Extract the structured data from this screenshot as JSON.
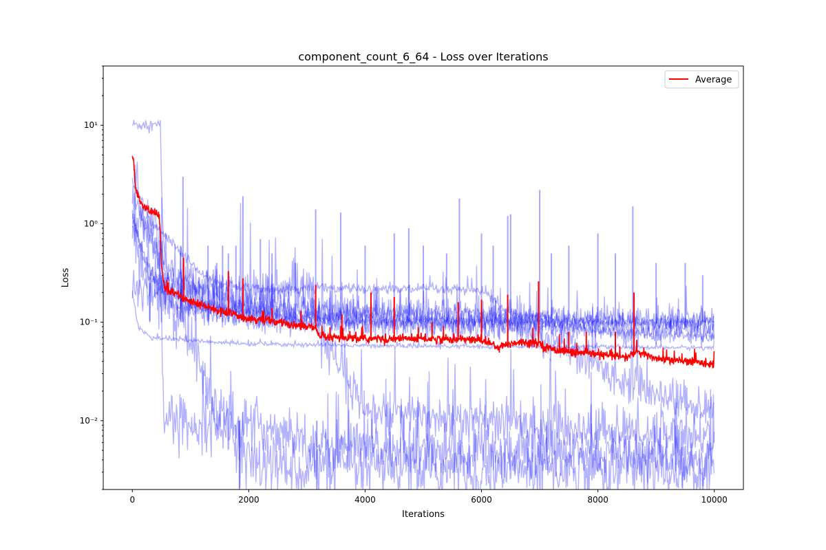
{
  "chart_data": {
    "type": "line",
    "title": "component_count_6_64 - Loss over Iterations",
    "xlabel": "Iterations",
    "ylabel": "Loss",
    "yscale": "log",
    "xlim": [
      -500,
      10500
    ],
    "ylim": [
      0.002,
      40
    ],
    "x_ticks": [
      0,
      2000,
      4000,
      6000,
      8000,
      10000
    ],
    "x_tick_labels": [
      "0",
      "2000",
      "4000",
      "6000",
      "8000",
      "10000"
    ],
    "y_ticks": [
      0.01,
      0.1,
      1,
      10
    ],
    "y_tick_labels": [
      "10⁻²",
      "10⁻¹",
      "10⁰",
      "10¹"
    ],
    "grid": false,
    "legend": {
      "position": "top-right",
      "entries": [
        "Average"
      ]
    },
    "colors": {
      "runs": "#0000ff",
      "average": "#ff0000"
    },
    "runs": [
      {
        "points": [
          [
            0,
            10.2
          ],
          [
            480,
            10
          ],
          [
            520,
            1.0
          ],
          [
            600,
            0.25
          ],
          [
            1000,
            0.14
          ],
          [
            3000,
            0.11
          ],
          [
            5000,
            0.1
          ],
          [
            7000,
            0.1
          ],
          [
            8000,
            0.08
          ],
          [
            9000,
            0.075
          ],
          [
            10000,
            0.07
          ]
        ],
        "noise": 0.15
      },
      {
        "points": [
          [
            0,
            1.1
          ],
          [
            400,
            1.1
          ],
          [
            450,
            0.7
          ],
          [
            550,
            0.0105
          ],
          [
            1000,
            0.0095
          ],
          [
            2000,
            0.009
          ],
          [
            2700,
            0.008
          ],
          [
            3200,
            0.0055
          ],
          [
            5000,
            0.005
          ],
          [
            8000,
            0.0045
          ],
          [
            10000,
            0.004
          ]
        ],
        "noise": 0.6
      },
      {
        "points": [
          [
            0,
            0.9
          ],
          [
            200,
            0.3
          ],
          [
            600,
            0.2
          ],
          [
            1800,
            0.005
          ],
          [
            2200,
            0.0035
          ],
          [
            4000,
            0.0032
          ],
          [
            7000,
            0.0032
          ],
          [
            10000,
            0.0032
          ]
        ],
        "noise": 0.75
      },
      {
        "points": [
          [
            0,
            0.22
          ],
          [
            3100,
            0.2
          ],
          [
            3200,
            0.08
          ],
          [
            4000,
            0.012
          ],
          [
            6000,
            0.01
          ],
          [
            8000,
            0.008
          ],
          [
            10000,
            0.007
          ]
        ],
        "noise": 0.55
      },
      {
        "points": [
          [
            0,
            0.2
          ],
          [
            100,
            0.09
          ],
          [
            300,
            0.07
          ],
          [
            1000,
            0.065
          ],
          [
            2000,
            0.06
          ],
          [
            5000,
            0.057
          ],
          [
            8000,
            0.056
          ],
          [
            10000,
            0.055
          ]
        ],
        "noise": 0.05
      },
      {
        "points": [
          [
            0,
            1.2
          ],
          [
            200,
            0.5
          ],
          [
            600,
            0.15
          ],
          [
            2000,
            0.1
          ],
          [
            4000,
            0.095
          ],
          [
            6000,
            0.1
          ],
          [
            8000,
            0.1
          ],
          [
            10000,
            0.09
          ]
        ],
        "noise": 0.2
      },
      {
        "points": [
          [
            0,
            2.8
          ],
          [
            300,
            1.1
          ],
          [
            1000,
            0.4
          ],
          [
            1200,
            0.3
          ],
          [
            1500,
            0.25
          ],
          [
            2000,
            0.22
          ],
          [
            4000,
            0.22
          ],
          [
            6000,
            0.21
          ],
          [
            6500,
            0.12
          ],
          [
            8000,
            0.1
          ],
          [
            10000,
            0.1
          ]
        ],
        "noise": 0.12
      },
      {
        "points": [
          [
            0,
            2.0
          ],
          [
            300,
            0.7
          ],
          [
            800,
            0.3
          ],
          [
            2000,
            0.15
          ],
          [
            4000,
            0.12
          ],
          [
            6500,
            0.1
          ],
          [
            7500,
            0.05
          ],
          [
            8500,
            0.025
          ],
          [
            9500,
            0.015
          ],
          [
            10000,
            0.012
          ]
        ],
        "noise": 0.45
      },
      {
        "points": [
          [
            0,
            5.0
          ],
          [
            200,
            1.0
          ],
          [
            600,
            0.3
          ],
          [
            2000,
            0.12
          ],
          [
            4000,
            0.1
          ],
          [
            6000,
            0.09
          ],
          [
            8000,
            0.085
          ],
          [
            10000,
            0.08
          ]
        ],
        "noise": 0.35
      },
      {
        "points": [
          [
            0,
            1.0
          ],
          [
            300,
            0.3
          ],
          [
            1000,
            0.15
          ],
          [
            3000,
            0.13
          ],
          [
            6000,
            0.12
          ],
          [
            8000,
            0.11
          ],
          [
            10000,
            0.11
          ]
        ],
        "noise": 0.25
      }
    ],
    "run_spikes": [
      [
        300,
        0.25
      ],
      [
        500,
        0.3
      ],
      [
        830,
        0.6
      ],
      [
        870,
        3.0
      ],
      [
        1300,
        0.6
      ],
      [
        1450,
        0.4
      ],
      [
        1550,
        0.6
      ],
      [
        1650,
        0.5
      ],
      [
        1780,
        0.6
      ],
      [
        1900,
        1.9
      ],
      [
        2200,
        0.7
      ],
      [
        2400,
        0.5
      ],
      [
        2800,
        0.4
      ],
      [
        3150,
        1.4
      ],
      [
        3580,
        1.3
      ],
      [
        4000,
        0.6
      ],
      [
        4500,
        0.8
      ],
      [
        4750,
        0.9
      ],
      [
        5000,
        0.6
      ],
      [
        5400,
        0.5
      ],
      [
        5620,
        1.8
      ],
      [
        6000,
        0.8
      ],
      [
        6200,
        0.6
      ],
      [
        6450,
        1.2
      ],
      [
        6500,
        1.25
      ],
      [
        7000,
        2.2
      ],
      [
        7200,
        0.5
      ],
      [
        7500,
        0.6
      ],
      [
        8000,
        0.8
      ],
      [
        8300,
        0.5
      ],
      [
        8600,
        1.5
      ],
      [
        9000,
        0.4
      ],
      [
        9500,
        0.4
      ],
      [
        9800,
        0.3
      ]
    ],
    "run_drops": [
      [
        1840,
        0.0005
      ],
      [
        3170,
        0.0005
      ]
    ],
    "average": {
      "name": "Average",
      "points": [
        [
          0,
          4.6
        ],
        [
          25,
          4.2
        ],
        [
          50,
          2.3
        ],
        [
          100,
          1.9
        ],
        [
          200,
          1.45
        ],
        [
          300,
          1.35
        ],
        [
          400,
          1.3
        ],
        [
          460,
          1.2
        ],
        [
          480,
          0.8
        ],
        [
          500,
          0.35
        ],
        [
          560,
          0.22
        ],
        [
          800,
          0.19
        ],
        [
          1000,
          0.16
        ],
        [
          1500,
          0.13
        ],
        [
          2000,
          0.11
        ],
        [
          2500,
          0.1
        ],
        [
          3000,
          0.09
        ],
        [
          3150,
          0.088
        ],
        [
          3200,
          0.07
        ],
        [
          4000,
          0.068
        ],
        [
          5000,
          0.068
        ],
        [
          6000,
          0.066
        ],
        [
          6300,
          0.056
        ],
        [
          6600,
          0.063
        ],
        [
          7000,
          0.062
        ],
        [
          7100,
          0.055
        ],
        [
          7500,
          0.05
        ],
        [
          8000,
          0.047
        ],
        [
          8500,
          0.044
        ],
        [
          8650,
          0.05
        ],
        [
          9000,
          0.043
        ],
        [
          9500,
          0.04
        ],
        [
          10000,
          0.038
        ]
      ],
      "spikes": [
        [
          700,
          0.22
        ],
        [
          880,
          0.45
        ],
        [
          1100,
          0.16
        ],
        [
          1400,
          0.14
        ],
        [
          1650,
          0.33
        ],
        [
          1900,
          0.28
        ],
        [
          2400,
          0.14
        ],
        [
          2900,
          0.13
        ],
        [
          3150,
          0.24
        ],
        [
          3600,
          0.12
        ],
        [
          4100,
          0.2
        ],
        [
          4500,
          0.18
        ],
        [
          5150,
          0.1
        ],
        [
          5600,
          0.16
        ],
        [
          6000,
          0.17
        ],
        [
          6450,
          0.19
        ],
        [
          6980,
          0.26
        ],
        [
          7500,
          0.08
        ],
        [
          7800,
          0.08
        ],
        [
          8300,
          0.08
        ],
        [
          8620,
          0.2
        ]
      ],
      "noise": 0.1
    }
  }
}
